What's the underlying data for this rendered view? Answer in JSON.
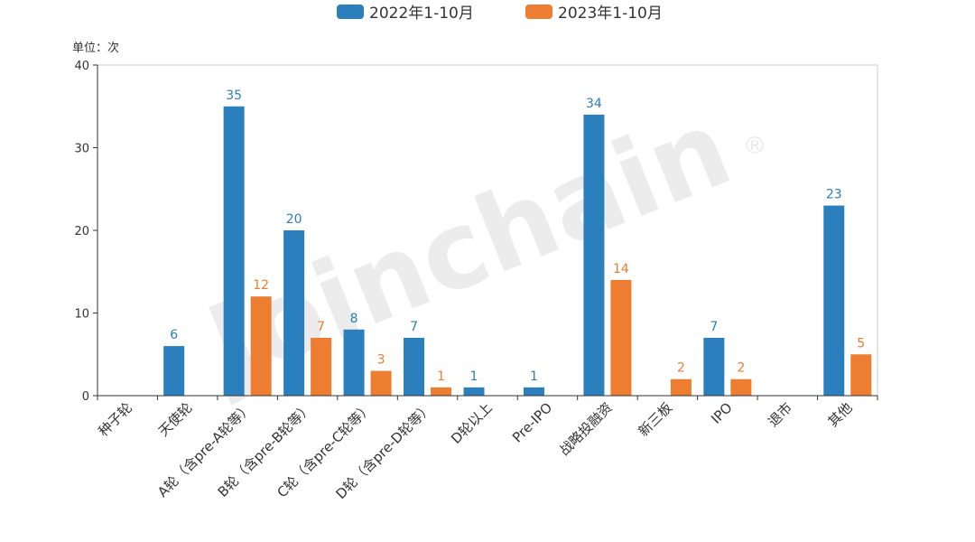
{
  "watermark": "Joinchain",
  "watermark_mark": "®",
  "chart_data": {
    "type": "bar",
    "unit_label": "单位：次",
    "categories": [
      "种子轮",
      "天使轮",
      "A轮（含pre-A轮等）",
      "B轮（含pre-B轮等）",
      "C轮（含pre-C轮等）",
      "D轮（含pre-D轮等）",
      "D轮以上",
      "Pre-IPO",
      "战略投融资",
      "新三板",
      "IPO",
      "退市",
      "其他"
    ],
    "series": [
      {
        "name": "2022年1-10月",
        "color": "#2b7fbd",
        "values": [
          0,
          6,
          35,
          20,
          8,
          7,
          1,
          1,
          34,
          0,
          7,
          0,
          23
        ]
      },
      {
        "name": "2023年1-10月",
        "color": "#ed7d31",
        "values": [
          0,
          0,
          12,
          7,
          3,
          1,
          0,
          0,
          14,
          2,
          2,
          0,
          5
        ]
      }
    ],
    "ylim": [
      0,
      40
    ],
    "yticks": [
      0,
      10,
      20,
      30,
      40
    ],
    "legend_position": "top-center",
    "grid": false
  }
}
